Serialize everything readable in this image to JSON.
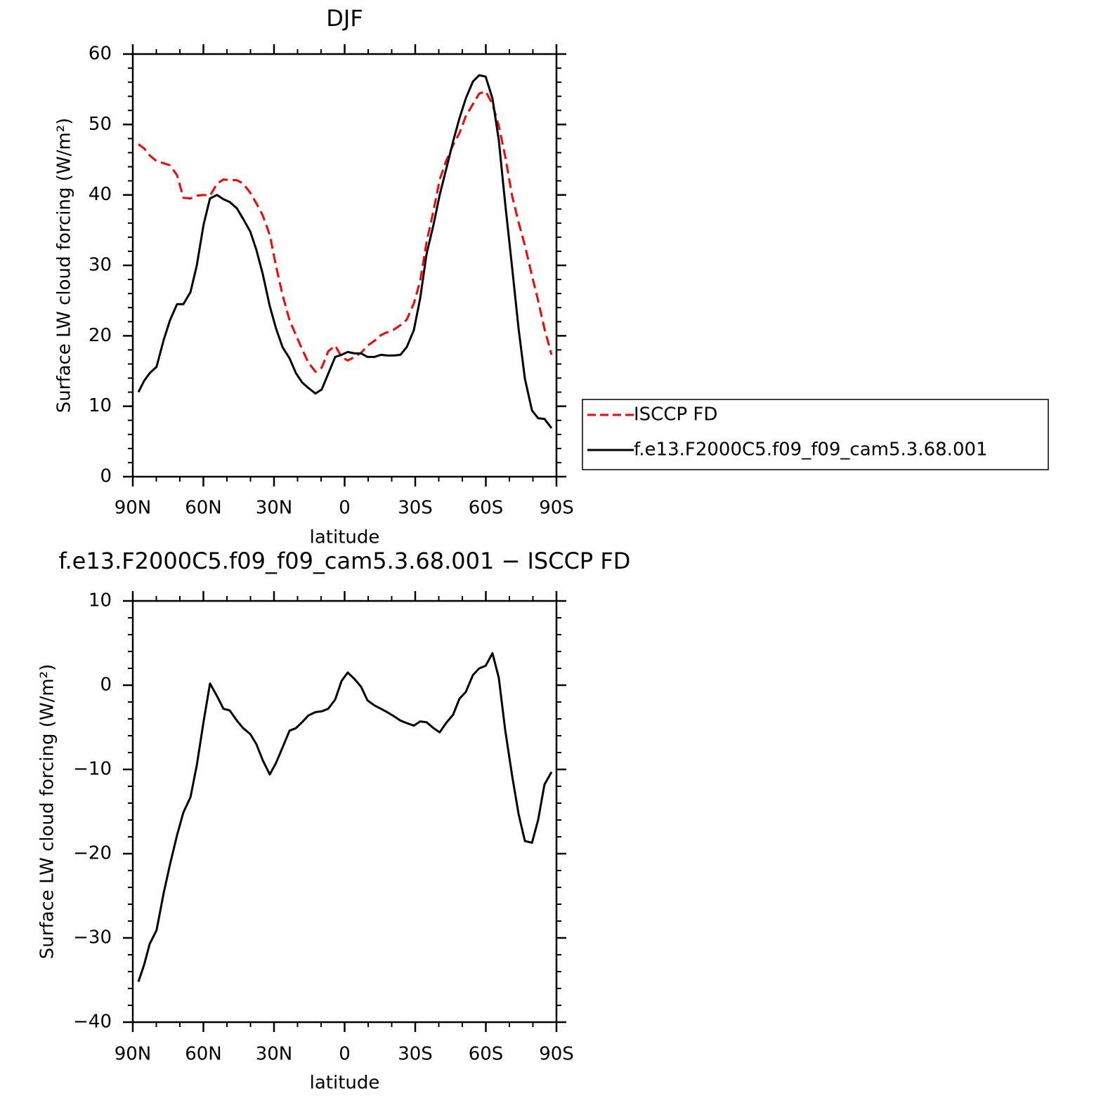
{
  "chart_data": [
    {
      "type": "line",
      "title": "DJF",
      "xlabel": "latitude",
      "ylabel": "Surface LW cloud forcing (W/m²)",
      "x": [
        87.6,
        85.2,
        82.8,
        79.9,
        76.9,
        74.2,
        71.2,
        68.5,
        65.5,
        62.8,
        59.9,
        57.2,
        54.2,
        51.5,
        48.8,
        45.8,
        43.1,
        40.1,
        37.5,
        34.8,
        31.8,
        29.1,
        26.4,
        23.4,
        20.7,
        18.1,
        15.4,
        12.4,
        9.7,
        7.0,
        4.0,
        1.3,
        -1.3,
        -4.3,
        -7.0,
        -9.7,
        -12.7,
        -15.4,
        -18.1,
        -21.0,
        -23.7,
        -26.4,
        -29.4,
        -32.1,
        -34.8,
        -37.8,
        -40.4,
        -43.1,
        -46.1,
        -48.8,
        -51.5,
        -54.5,
        -57.2,
        -59.9,
        -62.8,
        -65.5,
        -68.2,
        -71.2,
        -73.9,
        -76.6,
        -79.6,
        -82.2,
        -84.9,
        -87.9
      ],
      "series": [
        {
          "name": "ISCCP FD",
          "color": "#ff0000",
          "dashed": true,
          "values": [
            47.2,
            46.6,
            45.6,
            44.8,
            44.5,
            44.2,
            42.8,
            39.6,
            39.5,
            39.9,
            40.0,
            39.9,
            41.6,
            42.2,
            42.1,
            42.1,
            41.6,
            40.3,
            38.8,
            37.1,
            34.3,
            29.8,
            25.8,
            22.2,
            20.1,
            18.1,
            16.2,
            14.9,
            15.5,
            17.8,
            18.6,
            17.0,
            16.5,
            17.0,
            17.6,
            18.6,
            19.3,
            20.1,
            20.5,
            20.9,
            21.5,
            22.3,
            24.6,
            27.8,
            33.3,
            37.8,
            42.2,
            44.8,
            47.1,
            48.8,
            51.2,
            52.9,
            54.4,
            54.7,
            52.9,
            49.8,
            45.5,
            39.8,
            36.1,
            32.8,
            28.5,
            25.0,
            21.0,
            17.3
          ]
        },
        {
          "name": "f.e13.F2000C5.f09_f09_cam5.3.68.001",
          "color": "#000000",
          "dashed": false,
          "values": [
            12.0,
            13.6,
            14.7,
            15.6,
            19.4,
            22.2,
            24.5,
            24.5,
            26.2,
            30.0,
            35.8,
            39.5,
            40.0,
            39.4,
            39.0,
            38.1,
            36.6,
            34.8,
            32.2,
            28.8,
            24.2,
            21.0,
            18.4,
            16.8,
            14.7,
            13.4,
            12.6,
            11.8,
            12.4,
            14.6,
            17.0,
            17.3,
            17.7,
            17.5,
            17.5,
            17.0,
            17.0,
            17.3,
            17.2,
            17.2,
            17.3,
            18.4,
            20.8,
            25.3,
            31.6,
            35.8,
            40.0,
            43.6,
            47.6,
            50.9,
            53.7,
            56.1,
            57.0,
            56.8,
            53.7,
            47.8,
            38.8,
            29.6,
            21.0,
            13.9,
            9.4,
            8.3,
            8.2,
            6.9
          ]
        }
      ],
      "xlim": [
        90,
        -90
      ],
      "xticks": [
        {
          "value": 90,
          "label": "90N"
        },
        {
          "value": 60,
          "label": "60N"
        },
        {
          "value": 30,
          "label": "30N"
        },
        0,
        {
          "value": -30,
          "label": "30S"
        },
        {
          "value": -60,
          "label": "60S"
        },
        {
          "value": -90,
          "label": "90S"
        }
      ],
      "minor_xticks": [
        80,
        70,
        50,
        40,
        20,
        10,
        -10,
        -20,
        -40,
        -50,
        -70,
        -80
      ],
      "ylim": [
        0,
        60
      ],
      "yticks": [
        0,
        10,
        20,
        30,
        40,
        50,
        60
      ],
      "minor_yticks": [
        2,
        4,
        6,
        8,
        12,
        14,
        16,
        18,
        22,
        24,
        26,
        28,
        32,
        34,
        36,
        38,
        42,
        44,
        46,
        48,
        52,
        54,
        56,
        58
      ],
      "legend": "right"
    },
    {
      "type": "line",
      "title": "f.e13.F2000C5.f09_f09_cam5.3.68.001 − ISCCP FD",
      "xlabel": "latitude",
      "ylabel": "Surface LW cloud forcing (W/m²)",
      "x": [
        87.6,
        85.2,
        82.8,
        79.9,
        76.9,
        74.2,
        71.2,
        68.5,
        65.5,
        62.8,
        59.9,
        57.2,
        54.2,
        51.5,
        48.8,
        45.8,
        43.1,
        40.1,
        37.5,
        34.8,
        31.8,
        29.1,
        26.4,
        23.4,
        20.7,
        18.1,
        15.4,
        12.4,
        9.7,
        7.0,
        4.0,
        1.3,
        -1.3,
        -4.3,
        -7.0,
        -9.7,
        -12.7,
        -15.4,
        -18.1,
        -21.0,
        -23.7,
        -26.4,
        -29.4,
        -32.1,
        -34.8,
        -37.8,
        -40.4,
        -43.1,
        -46.1,
        -48.8,
        -51.5,
        -54.5,
        -57.2,
        -59.9,
        -62.8,
        -65.5,
        -68.2,
        -71.2,
        -73.9,
        -76.6,
        -79.6,
        -82.2,
        -84.9,
        -87.9
      ],
      "values": [
        -35.2,
        -33.2,
        -30.7,
        -29.1,
        -24.7,
        -21.3,
        -17.8,
        -15.1,
        -13.3,
        -9.5,
        -4.3,
        0.2,
        -1.3,
        -2.8,
        -3.0,
        -4.2,
        -5.1,
        -5.8,
        -7.0,
        -8.9,
        -10.6,
        -9.2,
        -7.4,
        -5.4,
        -5.1,
        -4.4,
        -3.6,
        -3.2,
        -3.1,
        -2.8,
        -1.7,
        0.5,
        1.5,
        0.7,
        -0.2,
        -1.8,
        -2.4,
        -2.8,
        -3.2,
        -3.7,
        -4.2,
        -4.5,
        -4.8,
        -4.3,
        -4.4,
        -5.1,
        -5.6,
        -4.5,
        -3.5,
        -1.6,
        -0.8,
        1.2,
        2.0,
        2.3,
        3.8,
        0.9,
        -5.3,
        -10.8,
        -15.3,
        -18.5,
        -18.7,
        -16.0,
        -11.8,
        -10.3
      ],
      "color": "#000000",
      "xlim": [
        90,
        -90
      ],
      "xticks": [
        {
          "value": 90,
          "label": "90N"
        },
        {
          "value": 60,
          "label": "60N"
        },
        {
          "value": 30,
          "label": "30N"
        },
        0,
        {
          "value": -30,
          "label": "30S"
        },
        {
          "value": -60,
          "label": "60S"
        },
        {
          "value": -90,
          "label": "90S"
        }
      ],
      "minor_xticks": [
        80,
        70,
        50,
        40,
        20,
        10,
        -10,
        -20,
        -40,
        -50,
        -70,
        -80
      ],
      "ylim": [
        -40,
        10
      ],
      "yticks": [
        {
          "value": -40,
          "label": "−40"
        },
        {
          "value": -30,
          "label": "−30"
        },
        {
          "value": -20,
          "label": "−20"
        },
        {
          "value": -10,
          "label": "−10"
        },
        0,
        10
      ],
      "minor_yticks": [
        -38,
        -36,
        -34,
        -32,
        -28,
        -26,
        -24,
        -22,
        -18,
        -16,
        -14,
        -12,
        -8,
        -6,
        -4,
        -2,
        2,
        4,
        6,
        8
      ]
    }
  ]
}
